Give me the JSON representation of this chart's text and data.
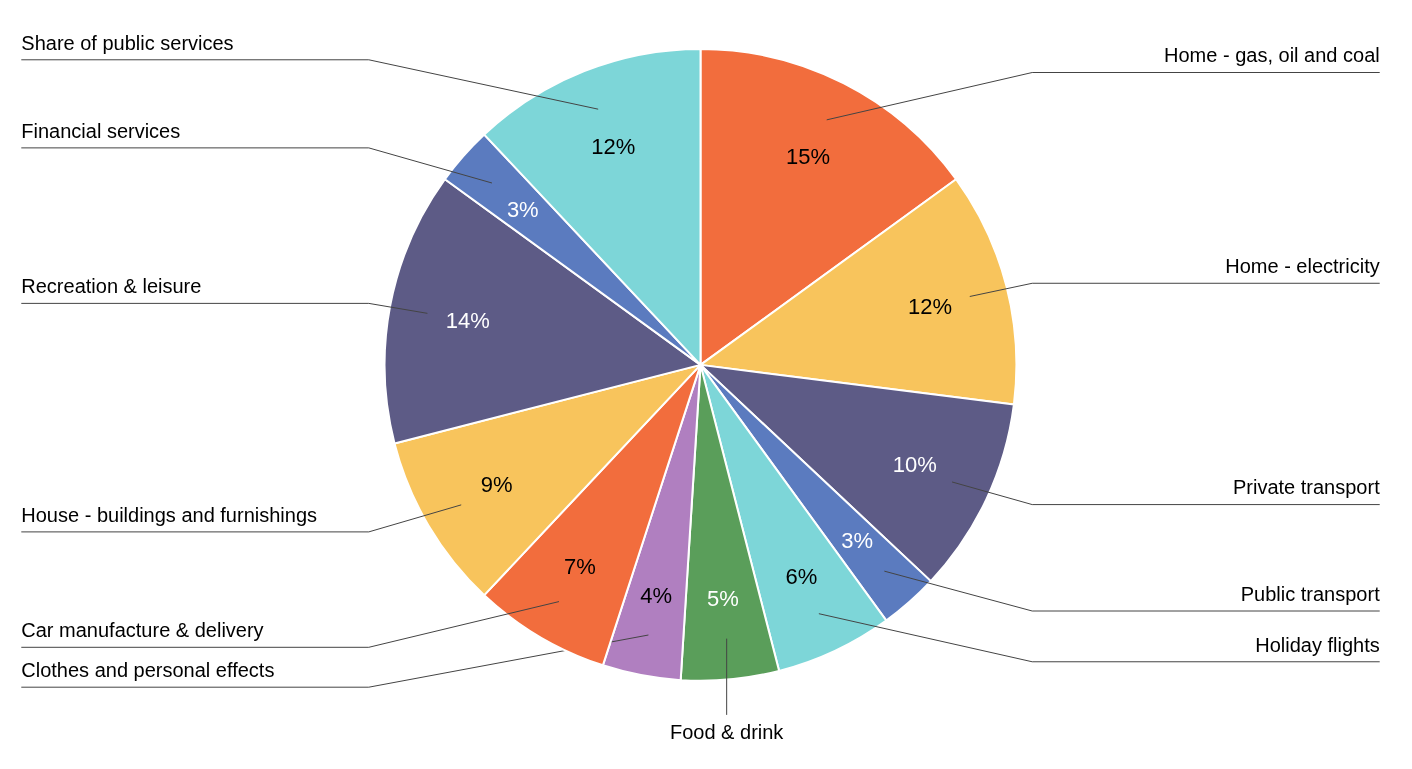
{
  "chart_data": {
    "type": "pie",
    "categories": [
      "Home - gas, oil and coal",
      "Home - electricity",
      "Private transport",
      "Public transport",
      "Holiday flights",
      "Food & drink",
      "Clothes and personal effects",
      "Car manufacture & delivery",
      "House - buildings and furnishings",
      "Recreation & leisure",
      "Financial services",
      "Share of public services"
    ],
    "values": [
      15,
      12,
      10,
      3,
      6,
      5,
      4,
      7,
      9,
      14,
      3,
      12
    ],
    "colors": [
      "#f26d3d",
      "#f8c45c",
      "#5d5b86",
      "#5b7bbf",
      "#7dd6d8",
      "#5a9e5a",
      "#b07fc0",
      "#f26d3d",
      "#f8c45c",
      "#5d5b86",
      "#5b7bbf",
      "#7dd6d8"
    ],
    "value_labels": [
      "15%",
      "12%",
      "10%",
      "3%",
      "6%",
      "5%",
      "4%",
      "7%",
      "9%",
      "14%",
      "3%",
      "12%"
    ]
  }
}
